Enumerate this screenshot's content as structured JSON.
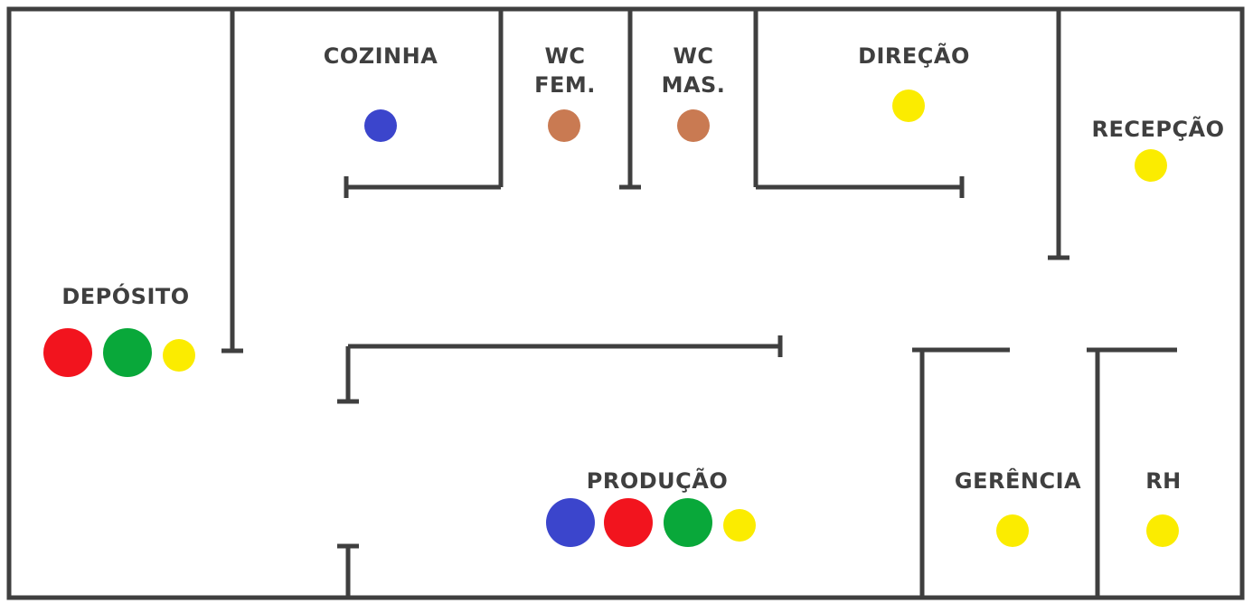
{
  "colors": {
    "wall": "#3f3f3f",
    "blue": "#3b45cc",
    "red": "#f2141e",
    "green": "#09a83a",
    "yellow": "#fbec00",
    "brown": "#c97a52"
  },
  "rooms": {
    "cozinha": {
      "label": "COZINHA",
      "markers": [
        "blue"
      ]
    },
    "wc_fem": {
      "label_line1": "WC",
      "label_line2": "FEM.",
      "markers": [
        "brown"
      ]
    },
    "wc_mas": {
      "label_line1": "WC",
      "label_line2": "MAS.",
      "markers": [
        "brown"
      ]
    },
    "direcao": {
      "label": "DIREÇÃO",
      "markers": [
        "yellow"
      ]
    },
    "recepcao": {
      "label": "RECEPÇÃO",
      "markers": [
        "yellow"
      ]
    },
    "deposito": {
      "label": "DEPÓSITO",
      "markers": [
        "red",
        "green",
        "yellow"
      ]
    },
    "producao": {
      "label": "PRODUÇÃO",
      "markers": [
        "blue",
        "red",
        "green",
        "yellow"
      ]
    },
    "gerencia": {
      "label": "GERÊNCIA",
      "markers": [
        "yellow"
      ]
    },
    "rh": {
      "label": "RH",
      "markers": [
        "yellow"
      ]
    }
  }
}
